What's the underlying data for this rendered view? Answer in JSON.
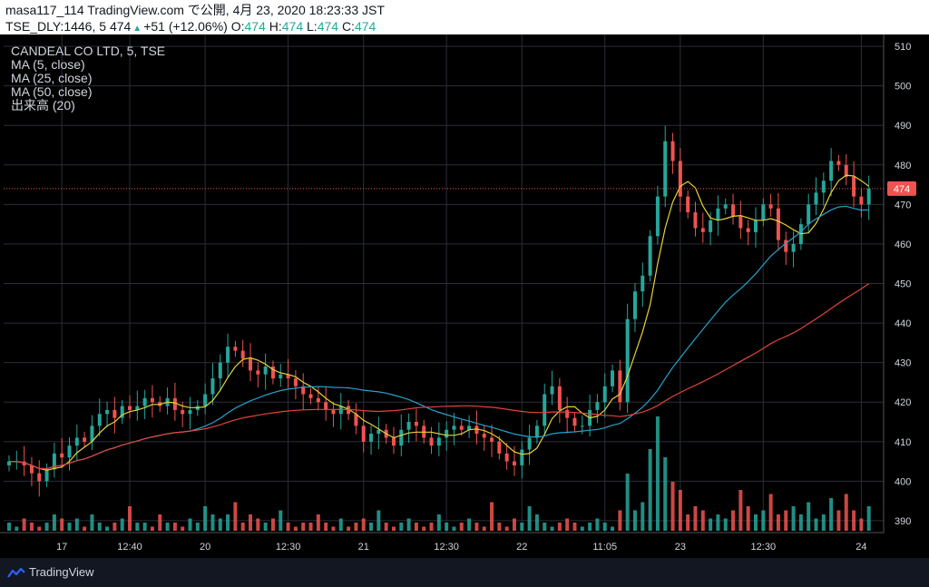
{
  "header": {
    "publish_line": "masa117_114 TradingView.com で公開, 4月 23, 2020 18:23:33 JST",
    "symbol": "TSE_DLY:1446, 5",
    "last": "474",
    "change": "+51 (+12.06%)",
    "ohlc": [
      {
        "label": "O:",
        "value": "474"
      },
      {
        "label": "H:",
        "value": "474"
      },
      {
        "label": "L:",
        "value": "474"
      },
      {
        "label": "C:",
        "value": "474"
      }
    ]
  },
  "legend": {
    "title": "CANDEAL CO LTD, 5, TSE",
    "ma5": "MA (5, close)",
    "ma25": "MA (25, close)",
    "ma50": "MA (50, close)",
    "volume": "出来高 (20)"
  },
  "footer": {
    "brand": "TradingView",
    "brand_icon": "tradingview-logo-icon"
  },
  "colors": {
    "up": "#26a69a",
    "down": "#ef5350",
    "ma5": "#e6d23a",
    "ma25": "#26a1c9",
    "ma50": "#e0453c",
    "grid": "#2a2e39",
    "text": "#d1d4dc",
    "price_line": "#ef5350"
  },
  "chart_data": {
    "type": "candlestick",
    "ylim": [
      387,
      513
    ],
    "yticks": [
      390,
      400,
      410,
      420,
      430,
      440,
      450,
      460,
      470,
      480,
      490,
      500,
      510
    ],
    "current_price": 474,
    "xticks": [
      {
        "i": 7,
        "label": "17"
      },
      {
        "i": 16,
        "label": "12:40"
      },
      {
        "i": 26,
        "label": "20"
      },
      {
        "i": 37,
        "label": "12:30"
      },
      {
        "i": 47,
        "label": "21"
      },
      {
        "i": 58,
        "label": "12:30"
      },
      {
        "i": 68,
        "label": "22"
      },
      {
        "i": 79,
        "label": "11:05"
      },
      {
        "i": 89,
        "label": "23"
      },
      {
        "i": 100,
        "label": "12:30"
      },
      {
        "i": 113,
        "label": "24"
      }
    ],
    "n_slots": 115,
    "closes": [
      405,
      405,
      404,
      402,
      400,
      403,
      407,
      406,
      409,
      411,
      410,
      414,
      417,
      418,
      416,
      419,
      418,
      419,
      421,
      420,
      419,
      421,
      418,
      417,
      418,
      419,
      422,
      426,
      430,
      434,
      433,
      431,
      428,
      427,
      429,
      426,
      427,
      426,
      424,
      422,
      421,
      420,
      418,
      417,
      419,
      417,
      414,
      410,
      412,
      413,
      411,
      409,
      413,
      415,
      414,
      411,
      409,
      411,
      413,
      414,
      413,
      414,
      412,
      411,
      410,
      407,
      405,
      404,
      408,
      411,
      414,
      422,
      424,
      418,
      416,
      414,
      414,
      418,
      420,
      424,
      428,
      420,
      441,
      448,
      452,
      462,
      472,
      486,
      481,
      472,
      468,
      464,
      463,
      466,
      469,
      470,
      467,
      464,
      463,
      466,
      470,
      469,
      461,
      458,
      460,
      465,
      470,
      473,
      476,
      481,
      480,
      477,
      472,
      470,
      474
    ],
    "volumes": [
      0.1,
      0.05,
      0.15,
      0.1,
      0.05,
      0.1,
      0.2,
      0.15,
      0.1,
      0.15,
      0.05,
      0.2,
      0.1,
      0.05,
      0.1,
      0.15,
      0.3,
      0.1,
      0.1,
      0.05,
      0.2,
      0.1,
      0.1,
      0.05,
      0.15,
      0.1,
      0.3,
      0.2,
      0.15,
      0.2,
      0.35,
      0.1,
      0.2,
      0.15,
      0.1,
      0.15,
      0.25,
      0.1,
      0.05,
      0.1,
      0.1,
      0.2,
      0.1,
      0.05,
      0.15,
      0.05,
      0.1,
      0.15,
      0.1,
      0.25,
      0.1,
      0.05,
      0.1,
      0.15,
      0.1,
      0.05,
      0.1,
      0.2,
      0.1,
      0.05,
      0.1,
      0.15,
      0.1,
      0.05,
      0.35,
      0.1,
      0.05,
      0.15,
      0.1,
      0.3,
      0.2,
      0.1,
      0.05,
      0.1,
      0.15,
      0.1,
      0.05,
      0.1,
      0.15,
      0.1,
      0.05,
      0.25,
      0.7,
      0.25,
      0.35,
      1.0,
      1.4,
      0.9,
      0.6,
      0.5,
      0.2,
      0.3,
      0.25,
      0.15,
      0.2,
      0.15,
      0.25,
      0.5,
      0.3,
      0.2,
      0.25,
      0.45,
      0.2,
      0.25,
      0.3,
      0.2,
      0.35,
      0.15,
      0.2,
      0.4,
      0.25,
      0.45,
      0.25,
      0.15,
      0.3
    ]
  }
}
